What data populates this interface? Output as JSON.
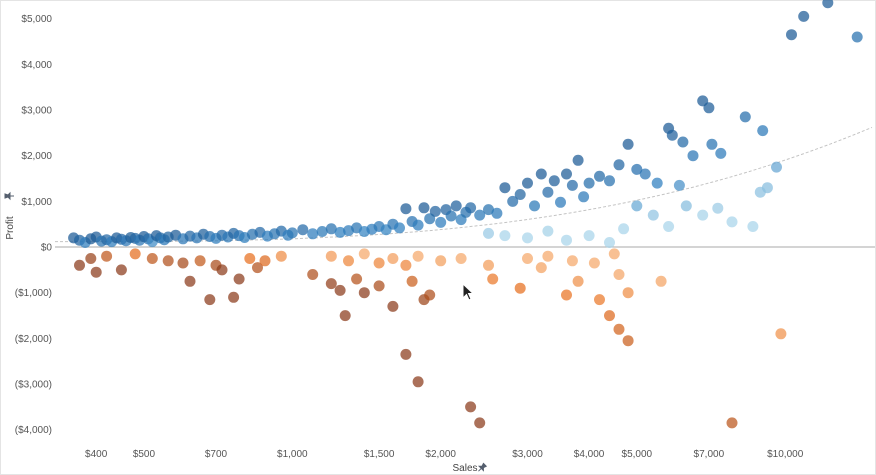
{
  "chart_data": {
    "type": "scatter",
    "xlabel": "Sales",
    "ylabel": "Profit",
    "x_scale": "log",
    "xlim": [
      330,
      15000
    ],
    "ylim": [
      -4400,
      5300
    ],
    "x_ticks": [
      {
        "value": 400,
        "label": "$400"
      },
      {
        "value": 500,
        "label": "$500"
      },
      {
        "value": 700,
        "label": "$700"
      },
      {
        "value": 1000,
        "label": "$1,000"
      },
      {
        "value": 1500,
        "label": "$1,500"
      },
      {
        "value": 2000,
        "label": "$2,000"
      },
      {
        "value": 3000,
        "label": "$3,000"
      },
      {
        "value": 4000,
        "label": "$4,000"
      },
      {
        "value": 5000,
        "label": "$5,000"
      },
      {
        "value": 7000,
        "label": "$7,000"
      },
      {
        "value": 10000,
        "label": "$10,000"
      }
    ],
    "y_ticks": [
      {
        "value": 5000,
        "label": "$5,000"
      },
      {
        "value": 4000,
        "label": "$4,000"
      },
      {
        "value": 3000,
        "label": "$3,000"
      },
      {
        "value": 2000,
        "label": "$2,000"
      },
      {
        "value": 1000,
        "label": "$1,000"
      },
      {
        "value": 0,
        "label": "$0"
      },
      {
        "value": -1000,
        "label": "($1,000)"
      },
      {
        "value": -2000,
        "label": "($2,000)"
      },
      {
        "value": -3000,
        "label": "($3,000)"
      },
      {
        "value": -4000,
        "label": "($4,000)"
      }
    ],
    "grid": false,
    "zero_line": true,
    "trend_line": {
      "type": "polynomial",
      "style": "dashed",
      "color": "#bbbbbb"
    },
    "color_encoding": "diverging by profit: dark orange (loss) to dark blue (high profit); light colors near $0 for high sales",
    "colors": {
      "loss_dark": "#8b3a1a",
      "loss": "#e8701e",
      "loss_light": "#f5a86a",
      "profit_light": "#a8d4ea",
      "profit": "#2e7fc0",
      "profit_dark": "#1c5a95"
    },
    "points": [
      {
        "x": 360,
        "y": 200
      },
      {
        "x": 370,
        "y": 150
      },
      {
        "x": 380,
        "y": 100
      },
      {
        "x": 390,
        "y": 180
      },
      {
        "x": 400,
        "y": 220
      },
      {
        "x": 410,
        "y": 130
      },
      {
        "x": 420,
        "y": 160
      },
      {
        "x": 430,
        "y": 120
      },
      {
        "x": 440,
        "y": 200
      },
      {
        "x": 450,
        "y": 170
      },
      {
        "x": 460,
        "y": 140
      },
      {
        "x": 470,
        "y": 210
      },
      {
        "x": 480,
        "y": 190
      },
      {
        "x": 490,
        "y": 150
      },
      {
        "x": 500,
        "y": 230
      },
      {
        "x": 510,
        "y": 180
      },
      {
        "x": 520,
        "y": 120
      },
      {
        "x": 530,
        "y": 250
      },
      {
        "x": 540,
        "y": 200
      },
      {
        "x": 550,
        "y": 160
      },
      {
        "x": 560,
        "y": 220
      },
      {
        "x": 580,
        "y": 260
      },
      {
        "x": 600,
        "y": 180
      },
      {
        "x": 620,
        "y": 240
      },
      {
        "x": 640,
        "y": 200
      },
      {
        "x": 660,
        "y": 280
      },
      {
        "x": 680,
        "y": 230
      },
      {
        "x": 700,
        "y": 190
      },
      {
        "x": 720,
        "y": 260
      },
      {
        "x": 740,
        "y": 220
      },
      {
        "x": 760,
        "y": 300
      },
      {
        "x": 780,
        "y": 250
      },
      {
        "x": 800,
        "y": 210
      },
      {
        "x": 830,
        "y": 280
      },
      {
        "x": 860,
        "y": 320
      },
      {
        "x": 890,
        "y": 240
      },
      {
        "x": 920,
        "y": 290
      },
      {
        "x": 950,
        "y": 350
      },
      {
        "x": 980,
        "y": 260
      },
      {
        "x": 1000,
        "y": 310
      },
      {
        "x": 1050,
        "y": 380
      },
      {
        "x": 1100,
        "y": 290
      },
      {
        "x": 1150,
        "y": 340
      },
      {
        "x": 1200,
        "y": 400
      },
      {
        "x": 1250,
        "y": 320
      },
      {
        "x": 1300,
        "y": 360
      },
      {
        "x": 1350,
        "y": 420
      },
      {
        "x": 1400,
        "y": 340
      },
      {
        "x": 1450,
        "y": 390
      },
      {
        "x": 1500,
        "y": 450
      },
      {
        "x": 1550,
        "y": 380
      },
      {
        "x": 1600,
        "y": 500
      },
      {
        "x": 1650,
        "y": 420
      },
      {
        "x": 1700,
        "y": 840
      },
      {
        "x": 1750,
        "y": 560
      },
      {
        "x": 1800,
        "y": 480
      },
      {
        "x": 1850,
        "y": 860
      },
      {
        "x": 1900,
        "y": 620
      },
      {
        "x": 1950,
        "y": 780
      },
      {
        "x": 2000,
        "y": 540
      },
      {
        "x": 2050,
        "y": 820
      },
      {
        "x": 2100,
        "y": 680
      },
      {
        "x": 2150,
        "y": 900
      },
      {
        "x": 2200,
        "y": 600
      },
      {
        "x": 2250,
        "y": 760
      },
      {
        "x": 2300,
        "y": 860
      },
      {
        "x": 2400,
        "y": 700
      },
      {
        "x": 2500,
        "y": 820
      },
      {
        "x": 2600,
        "y": 740
      },
      {
        "x": 2700,
        "y": 1300
      },
      {
        "x": 2800,
        "y": 1000
      },
      {
        "x": 2900,
        "y": 1150
      },
      {
        "x": 3000,
        "y": 1400
      },
      {
        "x": 3100,
        "y": 900
      },
      {
        "x": 3200,
        "y": 1600
      },
      {
        "x": 3300,
        "y": 1200
      },
      {
        "x": 3400,
        "y": 1450
      },
      {
        "x": 3500,
        "y": 980
      },
      {
        "x": 3600,
        "y": 1600
      },
      {
        "x": 3700,
        "y": 1350
      },
      {
        "x": 3800,
        "y": 1900
      },
      {
        "x": 3900,
        "y": 1100
      },
      {
        "x": 4000,
        "y": 1400
      },
      {
        "x": 4200,
        "y": 1550
      },
      {
        "x": 4400,
        "y": 1450
      },
      {
        "x": 4600,
        "y": 1800
      },
      {
        "x": 4800,
        "y": 2250
      },
      {
        "x": 5000,
        "y": 1700
      },
      {
        "x": 5200,
        "y": 1600
      },
      {
        "x": 5500,
        "y": 1400
      },
      {
        "x": 5800,
        "y": 2600
      },
      {
        "x": 5900,
        "y": 2450
      },
      {
        "x": 6200,
        "y": 2300
      },
      {
        "x": 6500,
        "y": 2000
      },
      {
        "x": 6800,
        "y": 3200
      },
      {
        "x": 7000,
        "y": 3050
      },
      {
        "x": 7100,
        "y": 2250
      },
      {
        "x": 7400,
        "y": 2050
      },
      {
        "x": 8300,
        "y": 2850
      },
      {
        "x": 9000,
        "y": 2550
      },
      {
        "x": 10300,
        "y": 4650
      },
      {
        "x": 10900,
        "y": 5050
      },
      {
        "x": 12200,
        "y": 5350
      },
      {
        "x": 14000,
        "y": 4600
      },
      {
        "x": 2500,
        "y": 300
      },
      {
        "x": 2700,
        "y": 250
      },
      {
        "x": 3000,
        "y": 200
      },
      {
        "x": 3300,
        "y": 350
      },
      {
        "x": 3600,
        "y": 150
      },
      {
        "x": 4000,
        "y": 250
      },
      {
        "x": 4400,
        "y": 100
      },
      {
        "x": 4700,
        "y": 400
      },
      {
        "x": 5000,
        "y": 900
      },
      {
        "x": 5400,
        "y": 700
      },
      {
        "x": 5800,
        "y": 450
      },
      {
        "x": 6300,
        "y": 900
      },
      {
        "x": 6800,
        "y": 700
      },
      {
        "x": 7300,
        "y": 850
      },
      {
        "x": 7800,
        "y": 550
      },
      {
        "x": 8600,
        "y": 450
      },
      {
        "x": 9200,
        "y": 1300
      },
      {
        "x": 9600,
        "y": 1750
      },
      {
        "x": 8900,
        "y": 1200
      },
      {
        "x": 6100,
        "y": 1350
      },
      {
        "x": 370,
        "y": -400
      },
      {
        "x": 390,
        "y": -250
      },
      {
        "x": 400,
        "y": -550
      },
      {
        "x": 420,
        "y": -200
      },
      {
        "x": 450,
        "y": -500
      },
      {
        "x": 480,
        "y": -150
      },
      {
        "x": 520,
        "y": -250
      },
      {
        "x": 560,
        "y": -300
      },
      {
        "x": 600,
        "y": -350
      },
      {
        "x": 620,
        "y": -750
      },
      {
        "x": 650,
        "y": -300
      },
      {
        "x": 680,
        "y": -1150
      },
      {
        "x": 700,
        "y": -400
      },
      {
        "x": 720,
        "y": -500
      },
      {
        "x": 760,
        "y": -1100
      },
      {
        "x": 780,
        "y": -700
      },
      {
        "x": 820,
        "y": -250
      },
      {
        "x": 850,
        "y": -450
      },
      {
        "x": 880,
        "y": -300
      },
      {
        "x": 950,
        "y": -200
      },
      {
        "x": 1100,
        "y": -600
      },
      {
        "x": 1200,
        "y": -800
      },
      {
        "x": 1250,
        "y": -950
      },
      {
        "x": 1280,
        "y": -1500
      },
      {
        "x": 1350,
        "y": -700
      },
      {
        "x": 1400,
        "y": -1000
      },
      {
        "x": 1500,
        "y": -850
      },
      {
        "x": 1600,
        "y": -1300
      },
      {
        "x": 1700,
        "y": -2350
      },
      {
        "x": 1750,
        "y": -750
      },
      {
        "x": 1800,
        "y": -2950
      },
      {
        "x": 1850,
        "y": -1150
      },
      {
        "x": 1900,
        "y": -1050
      },
      {
        "x": 2300,
        "y": -3500
      },
      {
        "x": 2400,
        "y": -3850
      },
      {
        "x": 4400,
        "y": -1500
      },
      {
        "x": 4600,
        "y": -1800
      },
      {
        "x": 4800,
        "y": -2050
      },
      {
        "x": 7800,
        "y": -3850
      },
      {
        "x": 1200,
        "y": -200
      },
      {
        "x": 1300,
        "y": -300
      },
      {
        "x": 1400,
        "y": -150
      },
      {
        "x": 1500,
        "y": -350
      },
      {
        "x": 1600,
        "y": -250
      },
      {
        "x": 1700,
        "y": -400
      },
      {
        "x": 1800,
        "y": -200
      },
      {
        "x": 2000,
        "y": -300
      },
      {
        "x": 2200,
        "y": -250
      },
      {
        "x": 2500,
        "y": -400
      },
      {
        "x": 2550,
        "y": -700
      },
      {
        "x": 2900,
        "y": -900
      },
      {
        "x": 3200,
        "y": -450
      },
      {
        "x": 3600,
        "y": -1050
      },
      {
        "x": 3800,
        "y": -750
      },
      {
        "x": 4200,
        "y": -1150
      },
      {
        "x": 4600,
        "y": -600
      },
      {
        "x": 4800,
        "y": -1000
      },
      {
        "x": 5600,
        "y": -750
      },
      {
        "x": 9800,
        "y": -1900
      },
      {
        "x": 3000,
        "y": -250
      },
      {
        "x": 3300,
        "y": -200
      },
      {
        "x": 3700,
        "y": -300
      },
      {
        "x": 4100,
        "y": -350
      },
      {
        "x": 4500,
        "y": -150
      }
    ]
  },
  "x_pin_icon": "pin-icon",
  "y_pin_icon": "pin-icon",
  "cursor_icon": "mouse-pointer-icon"
}
